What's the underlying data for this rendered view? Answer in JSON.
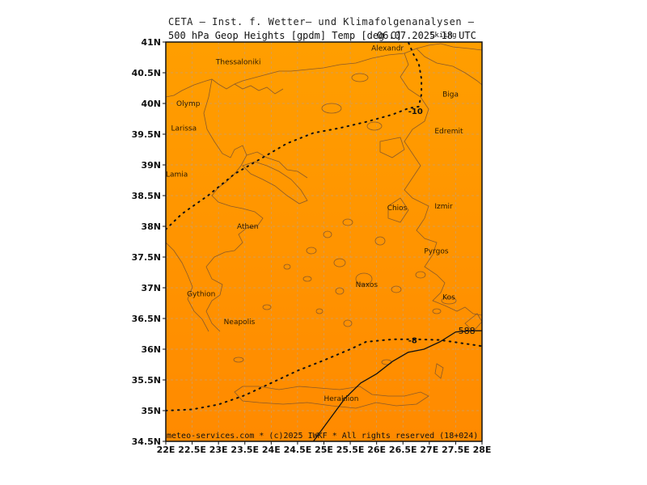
{
  "header": {
    "line1": "CETA — Inst. f. Wetter— und Klimafolgenanalysen —",
    "line2_left": "500 hPa Geop Heights [gpdm] Temp [deg C]",
    "line2_date": "06.07.2025 18 UTC",
    "line2_overlap": "Skiing"
  },
  "map": {
    "lon_range": [
      22,
      28
    ],
    "lat_range": [
      34.5,
      41
    ],
    "background_color": "#ff9100",
    "x_ticks": [
      "22E",
      "22.5E",
      "23E",
      "23.5E",
      "24E",
      "24.5E",
      "25E",
      "25.5E",
      "26E",
      "26.5E",
      "27E",
      "27.5E",
      "28E"
    ],
    "y_ticks": [
      "41N",
      "40.5N",
      "40N",
      "39.5N",
      "39N",
      "38.5N",
      "38N",
      "37.5N",
      "37N",
      "36.5N",
      "36N",
      "35.5N",
      "35N",
      "34.5N"
    ],
    "cities": [
      {
        "name": "Thessaloniki",
        "lon": 22.95,
        "lat": 40.68,
        "color": "#2a1a00"
      },
      {
        "name": "Alexandr",
        "lon": 25.9,
        "lat": 40.9,
        "color": "#2a1a00"
      },
      {
        "name": "Olymp",
        "lon": 22.2,
        "lat": 40.0,
        "color": "#3a9d23"
      },
      {
        "name": "Biga",
        "lon": 27.25,
        "lat": 40.15,
        "color": "#2a1a00"
      },
      {
        "name": "Larissa",
        "lon": 22.1,
        "lat": 39.6,
        "color": "#2a1a00"
      },
      {
        "name": "Edremit",
        "lon": 27.1,
        "lat": 39.55,
        "color": "#2a1a00"
      },
      {
        "name": "Lamia",
        "lon": 22.0,
        "lat": 38.85,
        "color": "#2a1a00"
      },
      {
        "name": "Chios",
        "lon": 26.2,
        "lat": 38.3,
        "color": "#2a1a00"
      },
      {
        "name": "Izmir",
        "lon": 27.1,
        "lat": 38.33,
        "color": "#111111"
      },
      {
        "name": "Athen",
        "lon": 23.35,
        "lat": 38.0,
        "color": "#2a1a00"
      },
      {
        "name": "Pyrgos",
        "lon": 26.9,
        "lat": 37.6,
        "color": "#2a1a00"
      },
      {
        "name": "Naxos",
        "lon": 25.6,
        "lat": 37.05,
        "color": "#2a1a00"
      },
      {
        "name": "Gythion",
        "lon": 22.4,
        "lat": 36.9,
        "color": "#2a1a00"
      },
      {
        "name": "Kos",
        "lon": 27.25,
        "lat": 36.85,
        "color": "#2a1a00"
      },
      {
        "name": "Neapolis",
        "lon": 23.1,
        "lat": 36.45,
        "color": "#2a1a00"
      },
      {
        "name": "Heraklion",
        "lon": 25.0,
        "lat": 35.2,
        "color": "#2a1a00"
      }
    ],
    "isotherms": [
      {
        "label": "-10",
        "label_lon": 26.6,
        "label_lat": 39.88,
        "points": [
          [
            22,
            37.95
          ],
          [
            22.3,
            38.2
          ],
          [
            22.8,
            38.5
          ],
          [
            23.3,
            38.85
          ],
          [
            23.8,
            39.1
          ],
          [
            24.3,
            39.35
          ],
          [
            24.8,
            39.52
          ],
          [
            25.3,
            39.6
          ],
          [
            25.8,
            39.7
          ],
          [
            26.3,
            39.82
          ],
          [
            26.6,
            39.92
          ],
          [
            26.8,
            39.95
          ],
          [
            26.85,
            40.15
          ],
          [
            26.85,
            40.4
          ],
          [
            26.8,
            40.65
          ],
          [
            26.7,
            40.8
          ],
          [
            26.6,
            41
          ]
        ]
      },
      {
        "label": "-8",
        "label_lon": 26.6,
        "label_lat": 36.15,
        "points": [
          [
            22,
            35.0
          ],
          [
            22.5,
            35.02
          ],
          [
            23,
            35.1
          ],
          [
            23.5,
            35.25
          ],
          [
            24,
            35.45
          ],
          [
            24.5,
            35.65
          ],
          [
            25,
            35.82
          ],
          [
            25.5,
            36.0
          ],
          [
            25.8,
            36.12
          ],
          [
            26.3,
            36.16
          ],
          [
            26.8,
            36.16
          ],
          [
            27.2,
            36.15
          ],
          [
            27.6,
            36.1
          ],
          [
            28,
            36.05
          ]
        ]
      }
    ],
    "geopotential": [
      {
        "label": "588",
        "label_lon": 27.55,
        "label_lat": 36.3,
        "points": [
          [
            24.8,
            34.5
          ],
          [
            25.1,
            34.85
          ],
          [
            25.4,
            35.2
          ],
          [
            25.7,
            35.45
          ],
          [
            26.0,
            35.6
          ],
          [
            26.3,
            35.8
          ],
          [
            26.6,
            35.95
          ],
          [
            26.9,
            36.0
          ],
          [
            27.2,
            36.12
          ],
          [
            27.5,
            36.28
          ],
          [
            27.75,
            36.3
          ],
          [
            28,
            36.3
          ]
        ]
      }
    ]
  },
  "footer": {
    "text": "meteo-services.com * (c)2025 IWKF * All rights reserved (18+024)"
  }
}
